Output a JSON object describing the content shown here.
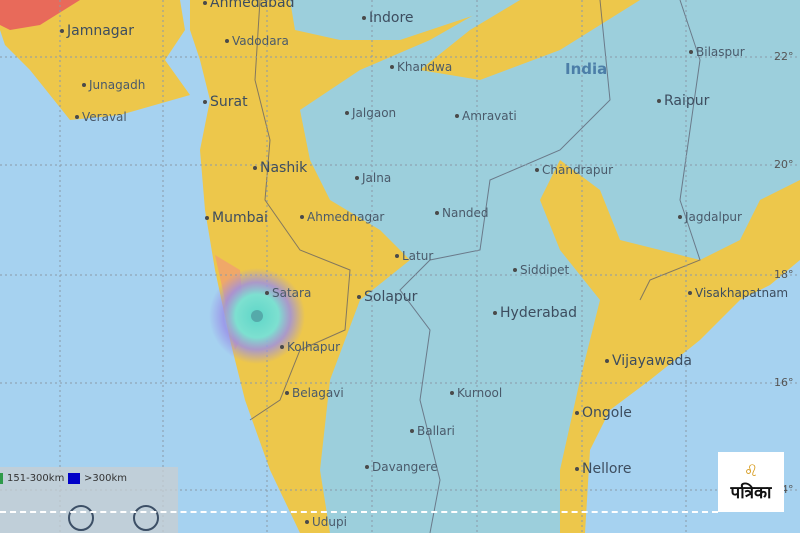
{
  "colors": {
    "sea": "#a6d2f0",
    "zone_yellow": "#edc74b",
    "zone_blue": "#9ccfdc",
    "zone_orange": "#f0a868",
    "zone_red": "#e86a5a",
    "epicenter": "#5fd6c8"
  },
  "country_label": "India",
  "cities": [
    {
      "name": "Ahmedabad",
      "big": true
    },
    {
      "name": "Indore",
      "big": true
    },
    {
      "name": "Jamnagar",
      "big": true
    },
    {
      "name": "Vadodara"
    },
    {
      "name": "Bilaspur"
    },
    {
      "name": "Khandwa"
    },
    {
      "name": "Junagadh"
    },
    {
      "name": "Surat",
      "big": true
    },
    {
      "name": "Raipur",
      "big": true
    },
    {
      "name": "Veraval"
    },
    {
      "name": "Jalgaon"
    },
    {
      "name": "Amravati"
    },
    {
      "name": "Nashik",
      "big": true
    },
    {
      "name": "Chandrapur"
    },
    {
      "name": "Jalna"
    },
    {
      "name": "Mumbai",
      "big": true
    },
    {
      "name": "Ahmednagar"
    },
    {
      "name": "Nanded"
    },
    {
      "name": "Jagdalpur"
    },
    {
      "name": "Latur"
    },
    {
      "name": "Siddipet"
    },
    {
      "name": "Satara"
    },
    {
      "name": "Solapur",
      "big": true
    },
    {
      "name": "Hyderabad",
      "big": true
    },
    {
      "name": "Visakhapatnam",
      "big": true
    },
    {
      "name": "Kolhapur"
    },
    {
      "name": "Vijayawada",
      "big": true
    },
    {
      "name": "Belagavi"
    },
    {
      "name": "Kurnool"
    },
    {
      "name": "Ongole",
      "big": true
    },
    {
      "name": "Ballari"
    },
    {
      "name": "Nellore",
      "big": true
    },
    {
      "name": "Davangere"
    },
    {
      "name": "Udupi"
    }
  ],
  "latitudes": [
    "22°",
    "20°",
    "18°",
    "16°",
    "14°"
  ],
  "legend": {
    "items": [
      {
        "label": "151-300km",
        "color": "#2e9a4a"
      },
      {
        "label": ">300km",
        "color": "#0000c8"
      }
    ]
  },
  "logo": {
    "text": "पत्रिका",
    "icon": "lion-emblem-icon"
  }
}
